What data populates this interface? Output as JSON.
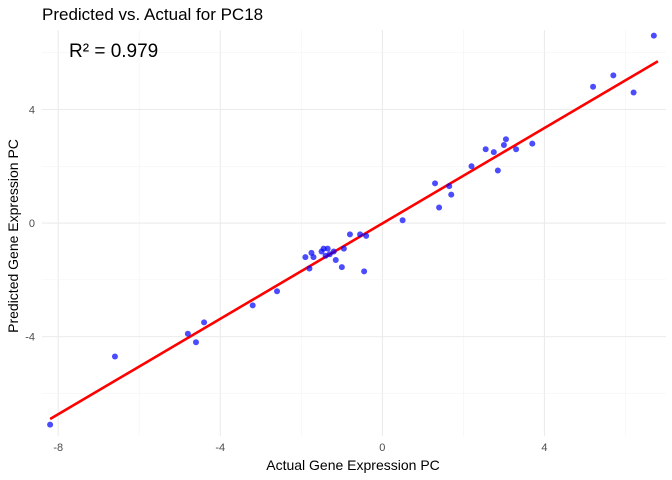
{
  "chart_data": {
    "type": "scatter",
    "title": "Predicted vs. Actual for PC18",
    "xlabel": "Actual Gene Expression PC",
    "ylabel": "Predicted Gene Expression PC",
    "annotation": "R² = 0.979",
    "xlim": [
      -8.4,
      7.0
    ],
    "ylim": [
      -7.5,
      6.8
    ],
    "x_ticks": [
      -8,
      -4,
      0,
      4
    ],
    "x_tick_labels": [
      "-8",
      "-4",
      "0",
      "4"
    ],
    "y_ticks": [
      -4,
      0,
      4
    ],
    "y_tick_labels": [
      "-4",
      "0",
      "4"
    ],
    "grid": true,
    "colors": {
      "points": "#0000ff",
      "fit_line": "#ff0000",
      "grid_major": "#ebebeb",
      "grid_minor": "#f4f4f4"
    },
    "fit_line": {
      "x": [
        -8.2,
        6.8
      ],
      "y": [
        -6.9,
        5.7
      ]
    },
    "points": [
      {
        "x": -8.2,
        "y": -7.1
      },
      {
        "x": -6.6,
        "y": -4.7
      },
      {
        "x": -4.8,
        "y": -3.9
      },
      {
        "x": -4.6,
        "y": -4.2
      },
      {
        "x": -4.4,
        "y": -3.5
      },
      {
        "x": -3.2,
        "y": -2.9
      },
      {
        "x": -2.6,
        "y": -2.4
      },
      {
        "x": -1.9,
        "y": -1.2
      },
      {
        "x": -1.8,
        "y": -1.6
      },
      {
        "x": -1.75,
        "y": -1.05
      },
      {
        "x": -1.7,
        "y": -1.2
      },
      {
        "x": -1.5,
        "y": -1.0
      },
      {
        "x": -1.45,
        "y": -0.9
      },
      {
        "x": -1.4,
        "y": -1.15
      },
      {
        "x": -1.35,
        "y": -0.9
      },
      {
        "x": -1.3,
        "y": -1.1
      },
      {
        "x": -1.2,
        "y": -1.0
      },
      {
        "x": -1.15,
        "y": -1.3
      },
      {
        "x": -1.0,
        "y": -1.55
      },
      {
        "x": -0.95,
        "y": -0.9
      },
      {
        "x": -0.8,
        "y": -0.4
      },
      {
        "x": -0.55,
        "y": -0.4
      },
      {
        "x": -0.45,
        "y": -1.7
      },
      {
        "x": -0.4,
        "y": -0.45
      },
      {
        "x": 0.5,
        "y": 0.1
      },
      {
        "x": 1.3,
        "y": 1.4
      },
      {
        "x": 1.4,
        "y": 0.55
      },
      {
        "x": 1.65,
        "y": 1.3
      },
      {
        "x": 1.7,
        "y": 1.0
      },
      {
        "x": 2.2,
        "y": 2.0
      },
      {
        "x": 2.55,
        "y": 2.6
      },
      {
        "x": 2.75,
        "y": 2.5
      },
      {
        "x": 2.85,
        "y": 1.85
      },
      {
        "x": 3.0,
        "y": 2.75
      },
      {
        "x": 3.05,
        "y": 2.95
      },
      {
        "x": 3.3,
        "y": 2.6
      },
      {
        "x": 3.7,
        "y": 2.8
      },
      {
        "x": 5.2,
        "y": 4.8
      },
      {
        "x": 5.7,
        "y": 5.2
      },
      {
        "x": 6.2,
        "y": 4.6
      },
      {
        "x": 6.7,
        "y": 6.6
      }
    ]
  }
}
